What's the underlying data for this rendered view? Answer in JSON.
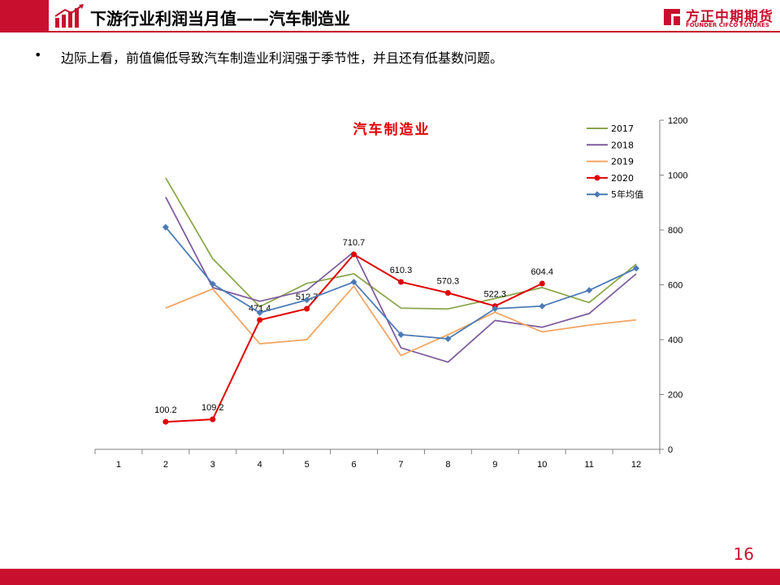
{
  "header": {
    "title": "下游行业利润当月值——汽车制造业",
    "brand_cn": "方正中期期货",
    "brand_en": "FOUNDER CIFCO FUTURES",
    "accent_color": "#c8102e"
  },
  "bullet": {
    "text": "边际上看，前值偏低导致汽车制造业利润强于季节性，并且还有低基数问题。"
  },
  "page_number": "16",
  "chart_data": {
    "type": "line",
    "title": "汽车制造业",
    "xlabel": "",
    "ylabel": "",
    "categories": [
      "1",
      "2",
      "3",
      "4",
      "5",
      "6",
      "7",
      "8",
      "9",
      "10",
      "11",
      "12"
    ],
    "y_ticks": [
      "0",
      "200",
      "400",
      "600",
      "800",
      "1000",
      "1200"
    ],
    "ylim": [
      0,
      1200
    ],
    "y_axis_side": "right",
    "grid": false,
    "legend_position": "top-right",
    "series": [
      {
        "name": "2017",
        "color": "#8aa64a",
        "marker": "none",
        "values": [
          null,
          990,
          695,
          520,
          605,
          640,
          515,
          512,
          550,
          590,
          535,
          675
        ]
      },
      {
        "name": "2018",
        "color": "#7d5a9e",
        "marker": "none",
        "values": [
          null,
          920,
          590,
          540,
          580,
          720,
          370,
          318,
          470,
          445,
          495,
          640
        ]
      },
      {
        "name": "2019",
        "color": "#f4a460",
        "marker": "none",
        "values": [
          null,
          515,
          585,
          385,
          400,
          595,
          342,
          418,
          500,
          428,
          453,
          472
        ]
      },
      {
        "name": "2020",
        "color": "#e00000",
        "marker": "circle",
        "values": [
          null,
          100.2,
          109.2,
          471.4,
          512.7,
          710.7,
          610.3,
          570.3,
          522.3,
          604.4,
          null,
          null
        ],
        "data_labels": [
          null,
          "100.2",
          "109.2",
          "471.4",
          "512.7",
          "710.7",
          "610.3",
          "570.3",
          "522.3",
          "604.4",
          null,
          null
        ]
      },
      {
        "name": "5年均值",
        "color": "#4a7ab5",
        "marker": "diamond",
        "values": [
          null,
          810,
          603,
          498,
          545,
          610,
          418,
          403,
          513,
          522,
          580,
          660
        ]
      }
    ]
  }
}
